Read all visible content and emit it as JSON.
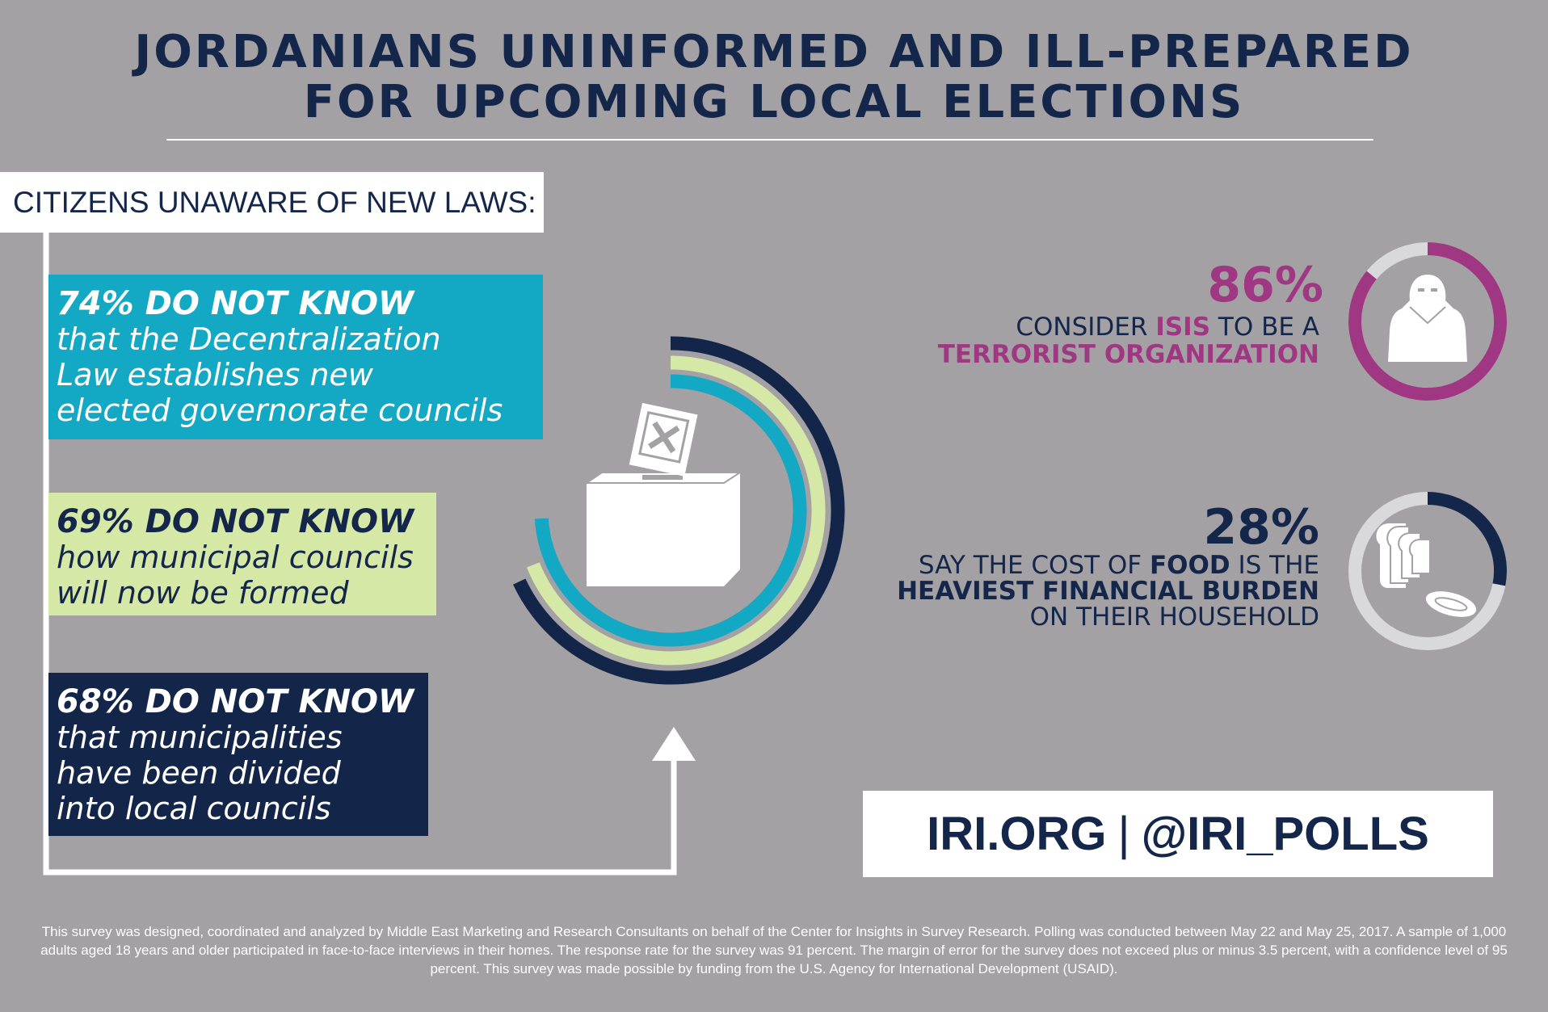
{
  "title": {
    "line1": "JORDANIANS UNINFORMED AND ILL-PREPARED",
    "line2": "FOR UPCOMING LOCAL ELECTIONS"
  },
  "section_label": "CITIZENS UNAWARE OF NEW LAWS:",
  "stats": [
    {
      "headline": "74% DO NOT KNOW",
      "body": "that the Decentralization\nLaw establishes new\nelected governorate councils",
      "value": 74,
      "color": "#13a8c3"
    },
    {
      "headline": "69% DO NOT KNOW",
      "body": "how municipal councils\nwill now be formed",
      "value": 69,
      "color": "#d6e8a6"
    },
    {
      "headline": "68% DO NOT KNOW",
      "body": "that municipalities\nhave been divided\ninto local councils",
      "value": 68,
      "color": "#13264a"
    }
  ],
  "isis": {
    "percent": "86%",
    "value": 86,
    "text_pre": "CONSIDER ",
    "text_highlight": "ISIS",
    "text_post": " TO BE A",
    "line2": "TERRORIST ORGANIZATION",
    "color": "#a03783"
  },
  "food": {
    "percent": "28%",
    "value": 28,
    "line1_pre": "SAY THE COST OF ",
    "line1_highlight": "FOOD",
    "line1_post": " IS THE",
    "line2": "HEAVIEST FINANCIAL BURDEN",
    "line3": "ON THEIR HOUSEHOLD",
    "color": "#14264a"
  },
  "web": {
    "site": "IRI.ORG",
    "separator": "|",
    "handle": "@IRI_POLLS"
  },
  "footer": "This survey was designed, coordinated and analyzed by Middle East Marketing and Research Consultants on behalf of the Center for Insights in Survey Research.  Polling was conducted between May 22 and May 25, 2017. A sample of 1,000 adults aged 18 years and older participated in face-to-face interviews in their homes. The response rate for the survey was 91 percent. The margin of error for the survey does not exceed plus or minus 3.5 percent, with a confidence level of 95 percent. This survey was made possible by funding from the U.S. Agency for International Development (USAID)."
}
